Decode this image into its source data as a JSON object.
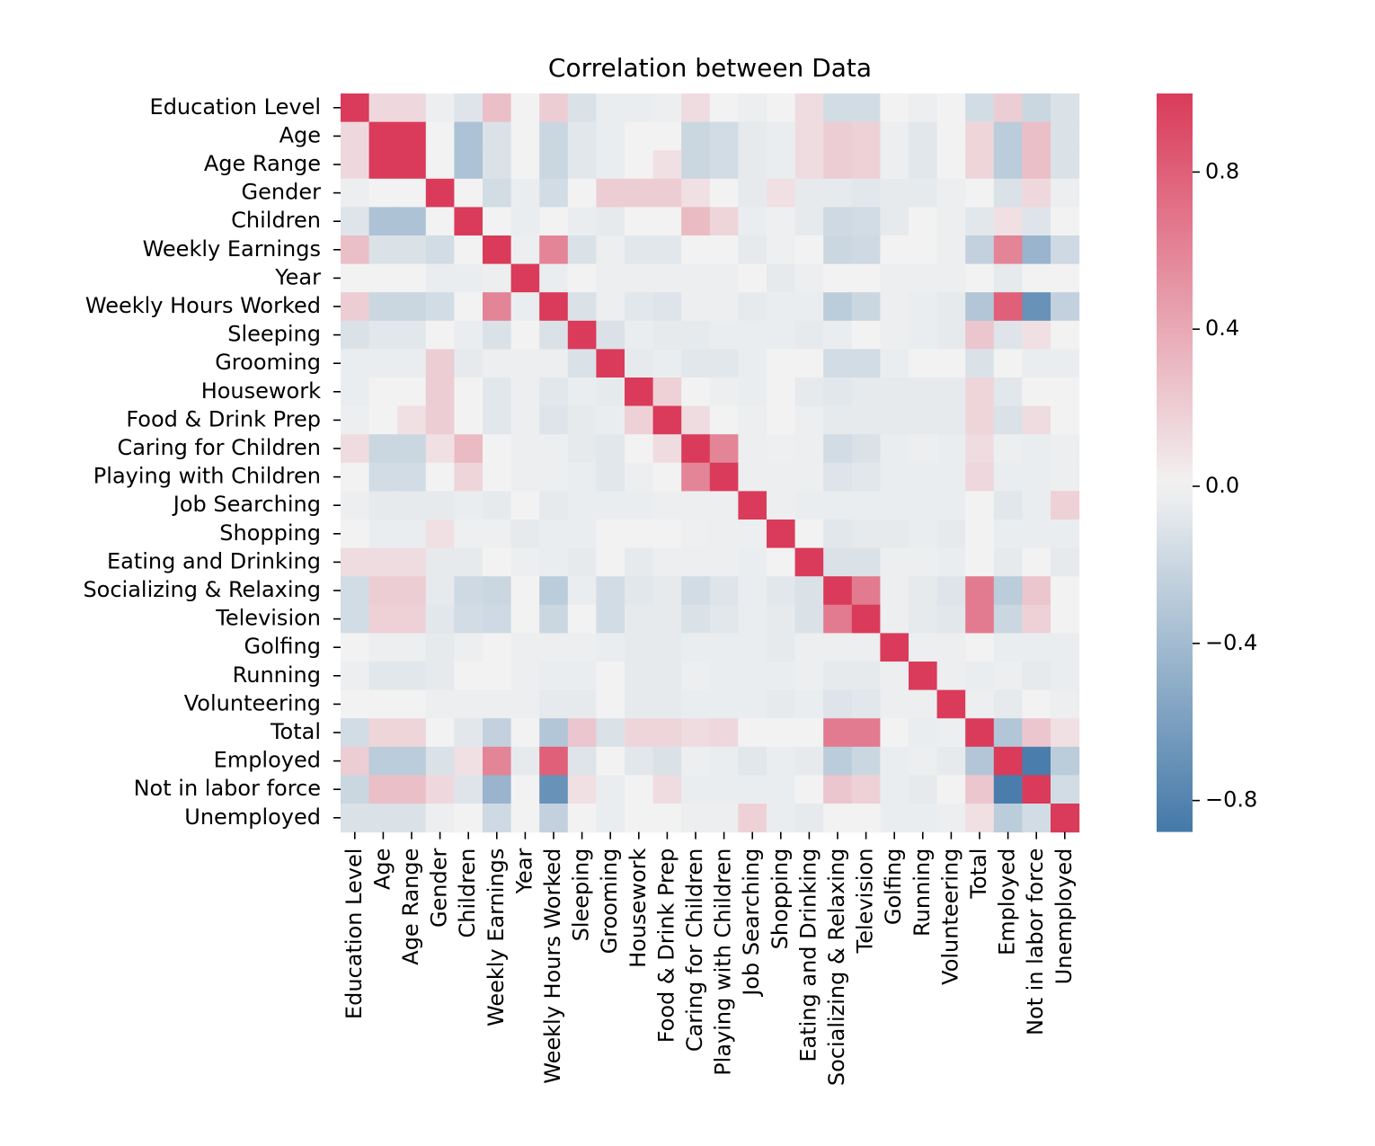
{
  "chart_data": {
    "type": "heatmap",
    "title": "Correlation between Data",
    "xlabel": "",
    "ylabel": "",
    "labels": [
      "Education Level",
      "Age",
      "Age Range",
      "Gender",
      "Children",
      "Weekly Earnings",
      "Year",
      "Weekly Hours Worked",
      "Sleeping",
      "Grooming",
      "Housework",
      "Food & Drink Prep",
      "Caring for Children",
      "Playing with Children",
      "Job Searching",
      "Shopping",
      "Eating and Drinking",
      "Socializing & Relaxing",
      "Television",
      "Golfing",
      "Running",
      "Volunteering",
      "Total",
      "Employed",
      "Not in labor force",
      "Unemployed"
    ],
    "matrix": [
      [
        1,
        0.14,
        0.14,
        -0.03,
        -0.1,
        0.28,
        0,
        0.2,
        -0.12,
        -0.04,
        -0.04,
        -0.03,
        0.12,
        0,
        -0.03,
        0,
        0.12,
        -0.16,
        -0.16,
        0,
        -0.03,
        0,
        -0.16,
        0.2,
        -0.2,
        -0.12
      ],
      [
        0.14,
        1,
        1,
        0,
        -0.35,
        -0.12,
        0,
        -0.2,
        -0.08,
        -0.04,
        0,
        0,
        -0.2,
        -0.16,
        -0.06,
        -0.04,
        0.12,
        0.2,
        0.18,
        -0.03,
        -0.08,
        0,
        0.16,
        -0.28,
        0.28,
        -0.12
      ],
      [
        0.14,
        1,
        1,
        0,
        -0.35,
        -0.12,
        0,
        -0.2,
        -0.08,
        -0.04,
        0,
        0.1,
        -0.2,
        -0.16,
        -0.06,
        -0.04,
        0.12,
        0.2,
        0.18,
        -0.03,
        -0.08,
        0,
        0.16,
        -0.28,
        0.28,
        -0.12
      ],
      [
        -0.03,
        0,
        0,
        1,
        0,
        -0.16,
        -0.04,
        -0.16,
        0,
        0.2,
        0.2,
        0.2,
        0.1,
        0,
        -0.06,
        0.1,
        -0.06,
        -0.06,
        -0.08,
        -0.06,
        -0.06,
        -0.03,
        0,
        -0.12,
        0.14,
        -0.03
      ],
      [
        -0.1,
        -0.35,
        -0.35,
        0,
        1,
        0,
        -0.04,
        0,
        -0.04,
        -0.06,
        0,
        0,
        0.3,
        0.16,
        -0.04,
        -0.02,
        -0.06,
        -0.18,
        -0.16,
        -0.06,
        0,
        -0.03,
        -0.08,
        0.1,
        -0.1,
        0
      ],
      [
        0.28,
        -0.12,
        -0.12,
        -0.16,
        0,
        1,
        -0.03,
        0.6,
        -0.12,
        -0.03,
        -0.08,
        -0.08,
        0,
        0,
        -0.06,
        -0.02,
        0,
        -0.2,
        -0.18,
        0,
        0,
        -0.03,
        -0.24,
        0.6,
        -0.45,
        -0.18
      ],
      [
        0,
        0,
        0,
        -0.04,
        -0.04,
        -0.03,
        1,
        -0.04,
        0,
        -0.03,
        -0.03,
        -0.03,
        -0.03,
        -0.03,
        0,
        -0.06,
        -0.03,
        0,
        0,
        -0.03,
        -0.03,
        -0.03,
        0,
        -0.06,
        0,
        0
      ],
      [
        0.2,
        -0.2,
        -0.2,
        -0.16,
        0,
        0.6,
        -0.04,
        1,
        -0.12,
        -0.03,
        -0.08,
        -0.1,
        -0.03,
        -0.03,
        -0.06,
        -0.04,
        -0.04,
        -0.28,
        -0.2,
        -0.03,
        -0.04,
        -0.06,
        -0.32,
        0.8,
        -0.7,
        -0.24
      ],
      [
        -0.12,
        -0.08,
        -0.08,
        0,
        -0.04,
        -0.12,
        0,
        -0.12,
        1,
        -0.12,
        -0.04,
        -0.06,
        -0.06,
        -0.04,
        -0.04,
        -0.04,
        -0.06,
        -0.04,
        0,
        -0.03,
        -0.04,
        -0.06,
        0.24,
        -0.1,
        0.1,
        0
      ],
      [
        -0.04,
        -0.04,
        -0.04,
        0.2,
        -0.06,
        -0.03,
        -0.03,
        -0.03,
        -0.12,
        1,
        -0.06,
        -0.04,
        -0.08,
        -0.08,
        -0.04,
        0,
        0,
        -0.16,
        -0.16,
        -0.04,
        0,
        0,
        -0.12,
        0,
        -0.04,
        -0.04
      ],
      [
        -0.04,
        0,
        0,
        0.2,
        0,
        -0.08,
        -0.03,
        -0.08,
        -0.04,
        -0.06,
        1,
        0.18,
        0,
        -0.03,
        -0.04,
        0,
        -0.06,
        -0.08,
        -0.06,
        -0.06,
        -0.06,
        -0.06,
        0.16,
        -0.08,
        0,
        0
      ],
      [
        -0.03,
        0,
        0.1,
        0.2,
        0,
        -0.08,
        -0.03,
        -0.1,
        -0.06,
        -0.04,
        0.18,
        1,
        0.12,
        0,
        -0.03,
        0,
        -0.03,
        -0.06,
        -0.06,
        -0.06,
        -0.06,
        -0.06,
        0.16,
        -0.12,
        0.12,
        0
      ],
      [
        0.12,
        -0.2,
        -0.2,
        0.1,
        0.3,
        0,
        -0.03,
        -0.03,
        -0.06,
        -0.08,
        0,
        0.12,
        1,
        0.6,
        -0.03,
        -0.02,
        -0.03,
        -0.16,
        -0.12,
        -0.04,
        -0.03,
        -0.04,
        0.12,
        -0.03,
        -0.04,
        -0.03
      ],
      [
        0,
        -0.16,
        -0.16,
        0,
        0.16,
        0,
        -0.03,
        -0.03,
        -0.04,
        -0.08,
        -0.03,
        0,
        0.6,
        1,
        -0.03,
        -0.03,
        -0.03,
        -0.1,
        -0.08,
        -0.04,
        -0.04,
        -0.04,
        0.14,
        -0.04,
        -0.04,
        -0.03
      ],
      [
        -0.03,
        -0.06,
        -0.06,
        -0.06,
        -0.04,
        -0.06,
        0,
        -0.06,
        -0.04,
        -0.04,
        -0.04,
        -0.03,
        -0.03,
        -0.03,
        1,
        -0.03,
        -0.04,
        -0.04,
        -0.04,
        -0.04,
        -0.04,
        -0.04,
        0,
        -0.08,
        -0.04,
        0.18
      ],
      [
        0,
        -0.04,
        -0.04,
        0.1,
        -0.02,
        -0.02,
        -0.06,
        -0.04,
        -0.04,
        0,
        0,
        0,
        -0.02,
        -0.03,
        -0.03,
        1,
        0,
        -0.08,
        -0.06,
        -0.06,
        -0.04,
        -0.06,
        0,
        -0.04,
        -0.04,
        -0.04
      ],
      [
        0.12,
        0.12,
        0.12,
        -0.06,
        -0.06,
        0,
        -0.03,
        -0.04,
        -0.06,
        0,
        -0.06,
        -0.03,
        -0.03,
        -0.03,
        -0.04,
        0,
        1,
        -0.12,
        -0.12,
        -0.03,
        -0.03,
        -0.04,
        0,
        -0.06,
        0,
        -0.06
      ],
      [
        -0.16,
        0.2,
        0.2,
        -0.06,
        -0.18,
        -0.2,
        0,
        -0.28,
        -0.04,
        -0.16,
        -0.08,
        -0.06,
        -0.16,
        -0.1,
        -0.04,
        -0.08,
        -0.12,
        1,
        0.65,
        -0.03,
        -0.06,
        -0.1,
        0.65,
        -0.28,
        0.24,
        0
      ],
      [
        -0.16,
        0.18,
        0.18,
        -0.08,
        -0.16,
        -0.18,
        0,
        -0.2,
        0,
        -0.16,
        -0.06,
        -0.06,
        -0.12,
        -0.08,
        -0.04,
        -0.06,
        -0.12,
        0.65,
        1,
        -0.03,
        -0.06,
        -0.08,
        0.65,
        -0.2,
        0.18,
        0
      ],
      [
        0,
        -0.03,
        -0.03,
        -0.06,
        -0.03,
        0,
        -0.03,
        -0.03,
        -0.03,
        -0.04,
        -0.06,
        -0.06,
        -0.04,
        -0.04,
        -0.04,
        -0.06,
        -0.03,
        -0.03,
        -0.03,
        1,
        -0.03,
        -0.03,
        0,
        -0.04,
        -0.04,
        -0.04
      ],
      [
        -0.03,
        -0.08,
        -0.08,
        -0.06,
        0,
        0,
        -0.03,
        -0.04,
        -0.04,
        0,
        -0.06,
        -0.06,
        -0.03,
        -0.04,
        -0.04,
        -0.04,
        -0.03,
        -0.06,
        -0.06,
        -0.03,
        1,
        -0.03,
        -0.04,
        -0.03,
        -0.06,
        -0.04
      ],
      [
        0,
        0,
        0,
        -0.03,
        -0.03,
        -0.03,
        -0.03,
        -0.06,
        -0.06,
        0,
        -0.06,
        -0.06,
        -0.04,
        -0.04,
        -0.04,
        -0.06,
        -0.04,
        -0.1,
        -0.08,
        -0.03,
        -0.03,
        1,
        -0.03,
        -0.06,
        0,
        -0.03
      ],
      [
        -0.16,
        0.16,
        0.16,
        0,
        -0.08,
        -0.24,
        0,
        -0.32,
        0.24,
        -0.12,
        0.16,
        0.16,
        0.12,
        0.14,
        0,
        0,
        0,
        0.65,
        0.65,
        0,
        -0.04,
        -0.03,
        1,
        -0.32,
        0.24,
        0.1
      ],
      [
        0.2,
        -0.28,
        -0.28,
        -0.12,
        0.1,
        0.6,
        -0.06,
        0.8,
        -0.1,
        0,
        -0.08,
        -0.12,
        -0.03,
        -0.04,
        -0.08,
        -0.04,
        -0.06,
        -0.28,
        -0.2,
        -0.04,
        -0.03,
        -0.06,
        -0.32,
        1,
        -0.85,
        -0.28
      ],
      [
        -0.2,
        0.28,
        0.28,
        0.14,
        -0.1,
        -0.45,
        0,
        -0.7,
        0.1,
        -0.04,
        0,
        0.12,
        -0.04,
        -0.04,
        -0.04,
        -0.04,
        0,
        0.24,
        0.18,
        -0.04,
        -0.06,
        0,
        0.24,
        -0.85,
        1,
        -0.16
      ],
      [
        -0.12,
        -0.12,
        -0.12,
        -0.03,
        0,
        -0.18,
        0,
        -0.24,
        0,
        -0.04,
        0,
        0,
        -0.03,
        -0.03,
        0.18,
        -0.04,
        -0.06,
        0,
        0,
        -0.04,
        -0.04,
        -0.03,
        0.1,
        -0.28,
        -0.16,
        1
      ]
    ],
    "colormap": {
      "negative_color": "#4479a8",
      "center_color": "#f2f2f2",
      "positive_color": "#da3b5a",
      "vmin": -0.88,
      "vmax": 1.0
    },
    "colorbar_ticks": [
      "−0.8",
      "−0.4",
      "0.0",
      "0.4",
      "0.8"
    ],
    "colorbar_tick_values": [
      -0.8,
      -0.4,
      0.0,
      0.4,
      0.8
    ],
    "grid": false,
    "colorbar_position": "right"
  }
}
